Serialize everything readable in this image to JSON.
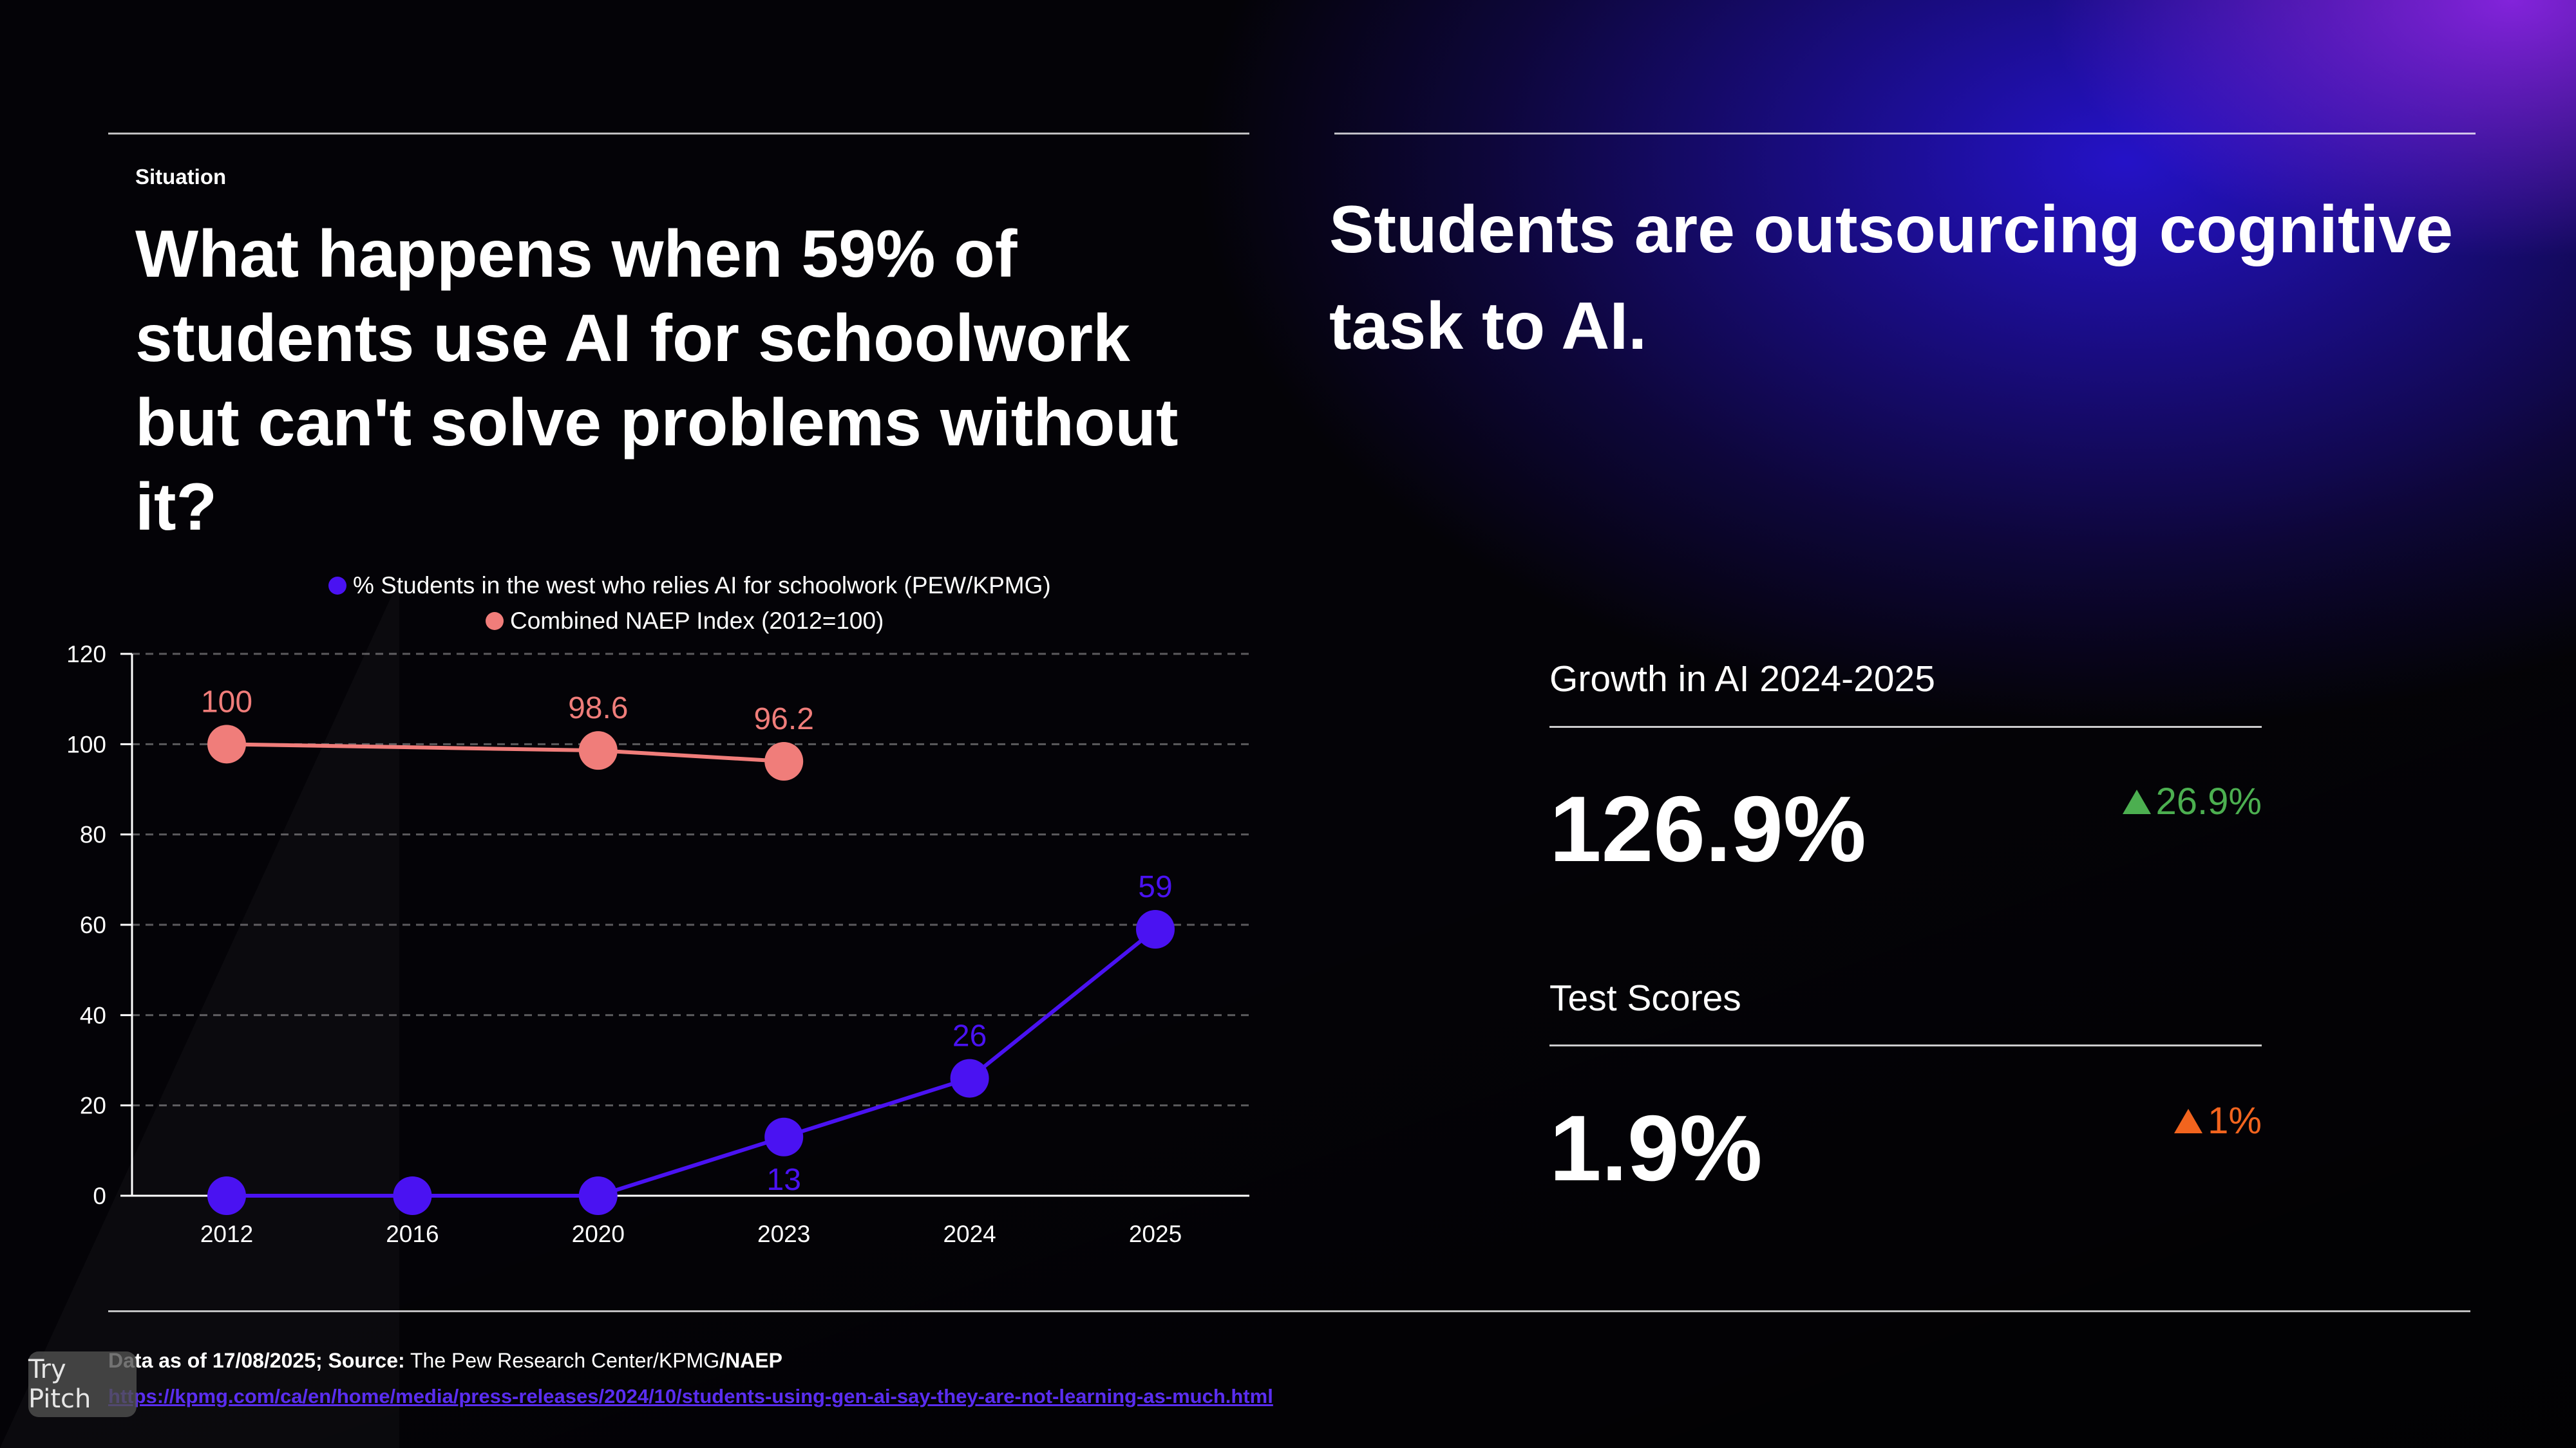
{
  "slide": {
    "kicker": "Situation",
    "headline": "What happens when 59% of students use AI for schoolwork but can't solve problems without it?",
    "right_headline": "Students are outsourcing cognitive task to AI."
  },
  "chart_data": {
    "type": "line",
    "categories": [
      "2012",
      "2016",
      "2020",
      "2023",
      "2024",
      "2025"
    ],
    "ylim": [
      0,
      120
    ],
    "yticks": [
      0,
      20,
      40,
      60,
      80,
      100,
      120
    ],
    "grid": true,
    "legend_position": "top-center",
    "series": [
      {
        "name": "% Students in the west who relies AI for schoolwork (PEW/KPMG)",
        "color": "#4a12f2",
        "values": [
          0,
          0,
          0,
          13,
          26,
          59
        ],
        "labels": [
          "",
          "",
          "",
          "13",
          "26",
          "59"
        ],
        "label_below": [
          false,
          false,
          false,
          true,
          false,
          false
        ]
      },
      {
        "name": "Combined NAEP Index (2012=100)",
        "color": "#f07d7a",
        "values": [
          100,
          null,
          98.6,
          96.2,
          null,
          null
        ],
        "labels": [
          "100",
          "",
          "98.6",
          "96.2",
          "",
          ""
        ]
      }
    ]
  },
  "kpis": [
    {
      "label": "Growth in AI 2024-2025",
      "value": "126.9%",
      "delta": "26.9%",
      "delta_color": "#4caf50",
      "delta_icon": "triangle-up-icon"
    },
    {
      "label": "Test Scores",
      "value": "1.9%",
      "delta": "1%",
      "delta_color": "#f2641e",
      "delta_icon": "triangle-up-icon"
    }
  ],
  "footer": {
    "source_date": "Data as of 17/08/2025;",
    "source_label": "Source:",
    "source_text": "The Pew Research Center/KPMG",
    "source_bold_tail": "/NAEP",
    "link": "https://kpmg.com/ca/en/home/media/press-releases/2024/10/students-using-gen-ai-say-they-are-not-learning-as-much.html"
  },
  "badge": {
    "label": "Try Pitch"
  }
}
